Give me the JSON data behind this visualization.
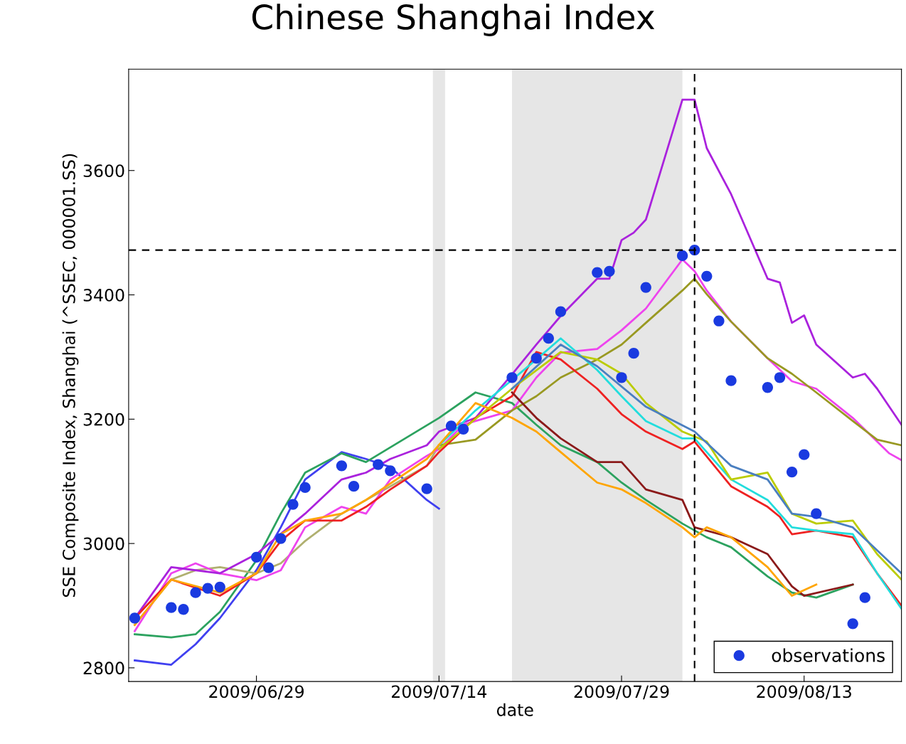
{
  "chart_data": {
    "type": "line",
    "title": "Chinese Shanghai Index",
    "xlabel": "date",
    "ylabel": "SSE Composite Index, Shanghai (^SSEC, 000001.SS)",
    "xlim": [
      "2009-06-18T12:00",
      "2009-08-21"
    ],
    "xticks": [
      {
        "value": "2009-06-29",
        "label": "2009/06/29"
      },
      {
        "value": "2009-07-14",
        "label": "2009/07/14"
      },
      {
        "value": "2009-07-29",
        "label": "2009/07/29"
      },
      {
        "value": "2009-08-13",
        "label": "2009/08/13"
      }
    ],
    "ylim": [
      2778,
      3763
    ],
    "yticks": [
      2800,
      3000,
      3200,
      3400,
      3600
    ],
    "grid": false,
    "legend": "bottom right",
    "ref_lines": [
      {
        "axis": "y",
        "value": 3472,
        "color": "#000000",
        "line_style": "dashed"
      },
      {
        "axis": "x",
        "value": "2009-08-04",
        "color": "#000000",
        "line_style": "dashed"
      }
    ],
    "bands": [
      {
        "axis": "x",
        "from": "2009-07-13T12:00",
        "to": "2009-07-14T12:00",
        "color": "#e6e6e6"
      },
      {
        "axis": "x",
        "from": "2009-07-20",
        "to": "2009-08-03",
        "color": "#e6e6e6"
      }
    ],
    "series": [
      {
        "color": "#4040f0",
        "x": [
          "2009-06-19",
          "2009-06-22",
          "2009-06-24",
          "2009-06-26",
          "2009-06-29",
          "2009-07-01",
          "2009-07-03",
          "2009-07-06",
          "2009-07-08",
          "2009-07-10",
          "2009-07-13",
          "2009-07-14"
        ],
        "values": [
          2812,
          2805,
          2838,
          2880,
          2957,
          3026,
          3103,
          3147,
          3136,
          3123,
          3070,
          3056
        ]
      },
      {
        "color": "#2ca25f",
        "x": [
          "2009-06-19",
          "2009-06-22",
          "2009-06-24",
          "2009-06-26",
          "2009-06-29",
          "2009-07-01",
          "2009-07-03",
          "2009-07-06",
          "2009-07-08",
          "2009-07-14",
          "2009-07-17",
          "2009-07-20",
          "2009-07-22",
          "2009-07-24",
          "2009-07-27",
          "2009-07-29",
          "2009-07-31",
          "2009-08-03",
          "2009-08-05",
          "2009-08-07",
          "2009-08-10",
          "2009-08-12",
          "2009-08-14",
          "2009-08-17"
        ],
        "values": [
          2854,
          2849,
          2854,
          2890,
          2973,
          3048,
          3114,
          3145,
          3131,
          3202,
          3243,
          3226,
          3191,
          3158,
          3131,
          3098,
          3070,
          3032,
          3010,
          2994,
          2947,
          2921,
          2913,
          2934
        ]
      },
      {
        "color": "#b0b070",
        "x": [
          "2009-06-19",
          "2009-06-22",
          "2009-06-24",
          "2009-06-26",
          "2009-06-29",
          "2009-07-01",
          "2009-07-03",
          "2009-07-06",
          "2009-07-08",
          "2009-07-10",
          "2009-07-13",
          "2009-07-14"
        ],
        "values": [
          2869,
          2942,
          2957,
          2962,
          2952,
          2968,
          3004,
          3048,
          3070,
          3092,
          3125,
          3158
        ]
      },
      {
        "color": "#ee44ee",
        "x": [
          "2009-06-19",
          "2009-06-22",
          "2009-06-24",
          "2009-06-26",
          "2009-06-29",
          "2009-07-01",
          "2009-07-03",
          "2009-07-06",
          "2009-07-08",
          "2009-07-10",
          "2009-07-13",
          "2009-07-14",
          "2009-07-16",
          "2009-07-17",
          "2009-07-20",
          "2009-07-22",
          "2009-07-24",
          "2009-07-27",
          "2009-07-29",
          "2009-07-31",
          "2009-08-03",
          "2009-08-04",
          "2009-08-05",
          "2009-08-07",
          "2009-08-10",
          "2009-08-12",
          "2009-08-14",
          "2009-08-17",
          "2009-08-19",
          "2009-08-20",
          "2009-08-21"
        ],
        "values": [
          2859,
          2952,
          2968,
          2952,
          2941,
          2957,
          3026,
          3059,
          3048,
          3103,
          3141,
          3152,
          3191,
          3197,
          3214,
          3267,
          3307,
          3313,
          3343,
          3378,
          3457,
          3438,
          3407,
          3357,
          3298,
          3261,
          3249,
          3202,
          3164,
          3145,
          3134
        ]
      },
      {
        "color": "#aa22dd",
        "x": [
          "2009-06-19",
          "2009-06-22",
          "2009-06-26",
          "2009-06-29",
          "2009-07-03",
          "2009-07-06",
          "2009-07-08",
          "2009-07-10",
          "2009-07-13",
          "2009-07-14",
          "2009-07-17",
          "2009-07-20",
          "2009-07-22",
          "2009-07-24",
          "2009-07-27",
          "2009-07-28",
          "2009-07-29",
          "2009-07-30",
          "2009-07-31",
          "2009-08-03",
          "2009-08-04",
          "2009-08-05",
          "2009-08-07",
          "2009-08-10",
          "2009-08-11",
          "2009-08-12",
          "2009-08-13",
          "2009-08-14",
          "2009-08-17",
          "2009-08-18",
          "2009-08-19",
          "2009-08-21"
        ],
        "values": [
          2880,
          2962,
          2952,
          2983,
          3048,
          3103,
          3114,
          3136,
          3158,
          3180,
          3202,
          3272,
          3320,
          3366,
          3426,
          3426,
          3488,
          3500,
          3521,
          3714,
          3714,
          3636,
          3562,
          3426,
          3420,
          3355,
          3367,
          3320,
          3267,
          3273,
          3249,
          3191
        ]
      },
      {
        "color": "#999922",
        "x": [
          "2009-07-14",
          "2009-07-17",
          "2009-07-20",
          "2009-07-22",
          "2009-07-24",
          "2009-07-27",
          "2009-07-29",
          "2009-07-31",
          "2009-08-03",
          "2009-08-04",
          "2009-08-05",
          "2009-08-07",
          "2009-08-10",
          "2009-08-12",
          "2009-08-14",
          "2009-08-17",
          "2009-08-19",
          "2009-08-21"
        ],
        "values": [
          3158,
          3167,
          3214,
          3237,
          3267,
          3296,
          3320,
          3355,
          3407,
          3426,
          3401,
          3357,
          3298,
          3273,
          3243,
          3197,
          3167,
          3158
        ]
      },
      {
        "color": "#ee2222",
        "x": [
          "2009-06-19",
          "2009-06-22",
          "2009-06-26",
          "2009-06-29",
          "2009-07-01",
          "2009-07-03",
          "2009-07-06",
          "2009-07-08",
          "2009-07-10",
          "2009-07-13",
          "2009-07-14",
          "2009-07-17",
          "2009-07-20",
          "2009-07-22",
          "2009-07-24",
          "2009-07-27",
          "2009-07-29",
          "2009-07-31",
          "2009-08-03",
          "2009-08-04",
          "2009-08-07",
          "2009-08-10",
          "2009-08-11",
          "2009-08-12",
          "2009-08-14",
          "2009-08-17",
          "2009-08-19",
          "2009-08-21"
        ],
        "values": [
          2880,
          2942,
          2916,
          2952,
          3004,
          3037,
          3037,
          3059,
          3087,
          3125,
          3147,
          3202,
          3237,
          3308,
          3296,
          3249,
          3208,
          3180,
          3152,
          3164,
          3092,
          3059,
          3043,
          3015,
          3021,
          3010,
          2952,
          2900
        ]
      },
      {
        "color": "#22dddd",
        "x": [
          "2009-07-14",
          "2009-07-17",
          "2009-07-22",
          "2009-07-24",
          "2009-07-27",
          "2009-07-29",
          "2009-07-31",
          "2009-08-03",
          "2009-08-04",
          "2009-08-07",
          "2009-08-10",
          "2009-08-12",
          "2009-08-14",
          "2009-08-17",
          "2009-08-19",
          "2009-08-21"
        ],
        "values": [
          3158,
          3214,
          3296,
          3330,
          3279,
          3237,
          3197,
          3169,
          3169,
          3103,
          3070,
          3026,
          3021,
          3015,
          2952,
          2895
        ]
      },
      {
        "color": "#bbcc00",
        "x": [
          "2009-07-14",
          "2009-07-20",
          "2009-07-24",
          "2009-07-27",
          "2009-07-29",
          "2009-07-31",
          "2009-08-03",
          "2009-08-05",
          "2009-08-07",
          "2009-08-10",
          "2009-08-12",
          "2009-08-14",
          "2009-08-17",
          "2009-08-19",
          "2009-08-21"
        ],
        "values": [
          3152,
          3249,
          3308,
          3296,
          3273,
          3226,
          3180,
          3164,
          3103,
          3114,
          3048,
          3032,
          3037,
          2983,
          2942
        ]
      },
      {
        "color": "#4a7fc0",
        "x": [
          "2009-07-20",
          "2009-07-24",
          "2009-07-27",
          "2009-07-31",
          "2009-08-04",
          "2009-08-07",
          "2009-08-10",
          "2009-08-12",
          "2009-08-14",
          "2009-08-17",
          "2009-08-21"
        ],
        "values": [
          3249,
          3320,
          3285,
          3220,
          3180,
          3125,
          3103,
          3048,
          3043,
          3026,
          2952
        ]
      },
      {
        "color": "#8b1a1a",
        "x": [
          "2009-07-20",
          "2009-07-22",
          "2009-07-24",
          "2009-07-27",
          "2009-07-29",
          "2009-07-31",
          "2009-08-03",
          "2009-08-04",
          "2009-08-07",
          "2009-08-10",
          "2009-08-12",
          "2009-08-13",
          "2009-08-17"
        ],
        "values": [
          3243,
          3202,
          3169,
          3131,
          3131,
          3087,
          3070,
          3026,
          3010,
          2983,
          2931,
          2916,
          2934
        ]
      },
      {
        "color": "#ffa500",
        "x": [
          "2009-06-19",
          "2009-06-22",
          "2009-06-26",
          "2009-06-29",
          "2009-07-01",
          "2009-07-03",
          "2009-07-06",
          "2009-07-08",
          "2009-07-13",
          "2009-07-17",
          "2009-07-20",
          "2009-07-22",
          "2009-07-24",
          "2009-07-27",
          "2009-07-29",
          "2009-07-31",
          "2009-08-03",
          "2009-08-04",
          "2009-08-05",
          "2009-08-07",
          "2009-08-10",
          "2009-08-12",
          "2009-08-14"
        ],
        "values": [
          2869,
          2942,
          2921,
          2952,
          3015,
          3037,
          3048,
          3070,
          3136,
          3226,
          3202,
          3180,
          3147,
          3098,
          3087,
          3065,
          3026,
          3010,
          3026,
          3010,
          2962,
          2916,
          2934
        ]
      },
      {
        "type": "scatter",
        "name": "observations",
        "color": "#1a3ae0",
        "marker": "circle",
        "x": [
          "2009-06-19",
          "2009-06-22",
          "2009-06-23",
          "2009-06-24",
          "2009-06-25",
          "2009-06-26",
          "2009-06-29",
          "2009-06-30",
          "2009-07-01",
          "2009-07-02",
          "2009-07-03",
          "2009-07-06",
          "2009-07-07",
          "2009-07-09",
          "2009-07-10",
          "2009-07-13",
          "2009-07-15",
          "2009-07-16",
          "2009-07-20",
          "2009-07-22",
          "2009-07-23",
          "2009-07-24",
          "2009-07-27",
          "2009-07-28",
          "2009-07-29",
          "2009-07-30",
          "2009-07-31",
          "2009-08-03",
          "2009-08-04",
          "2009-08-05",
          "2009-08-06",
          "2009-08-07",
          "2009-08-10",
          "2009-08-11",
          "2009-08-12",
          "2009-08-13",
          "2009-08-14",
          "2009-08-17",
          "2009-08-18"
        ],
        "values": [
          2880,
          2897,
          2894,
          2921,
          2928,
          2930,
          2978,
          2961,
          3008,
          3063,
          3090,
          3125,
          3092,
          3127,
          3117,
          3088,
          3189,
          3184,
          3267,
          3298,
          3330,
          3373,
          3436,
          3438,
          3267,
          3306,
          3412,
          3463,
          3472,
          3430,
          3358,
          3262,
          3251,
          3267,
          3115,
          3143,
          3048,
          2871,
          2913
        ]
      }
    ]
  }
}
